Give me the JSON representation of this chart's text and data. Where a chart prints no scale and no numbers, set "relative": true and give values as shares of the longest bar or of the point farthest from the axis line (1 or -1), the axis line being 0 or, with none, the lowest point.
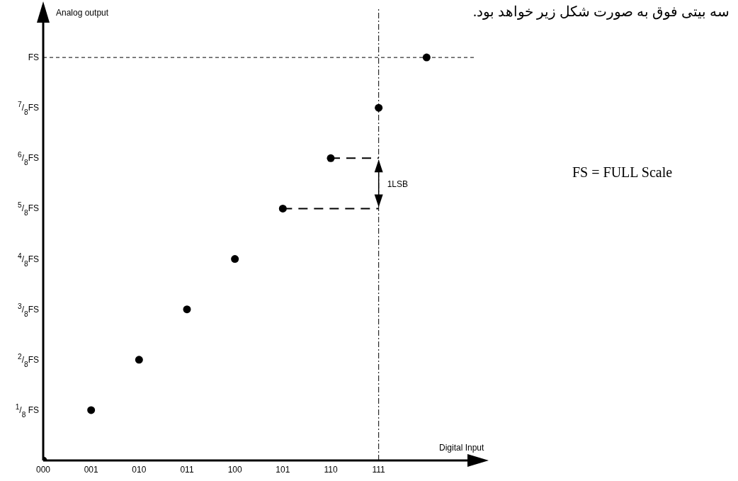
{
  "chart_data": {
    "type": "scatter",
    "title": "سه بیتی فوق به صورت شکل زیر خواهد بود.",
    "xlabel": "Digital Input",
    "ylabel": "Analog output",
    "relative": true,
    "categories": [
      "000",
      "001",
      "010",
      "011",
      "100",
      "101",
      "110",
      "111",
      null
    ],
    "series": [
      {
        "color": "#000000",
        "values": [
          0,
          0.125,
          0.25,
          0.375,
          0.5,
          0.625,
          0.75,
          0.875,
          1
        ]
      },
      {
        "type": "line",
        "x": [
          "101",
          "111"
        ],
        "values": [
          0.625,
          0.625
        ],
        "color": "#000000",
        "line_style": "dashed",
        "marker": "none"
      },
      {
        "type": "line",
        "x": [
          "110",
          "111"
        ],
        "values": [
          0.75,
          0.75
        ],
        "color": "#000000",
        "line_style": "dashed",
        "marker": "none"
      }
    ],
    "ref_lines": [
      {
        "axis": "y",
        "value": 1,
        "line_style": "dashed",
        "color": "#000000"
      },
      {
        "axis": "x",
        "value": "111",
        "line_style": "dashed",
        "color": "#000000"
      },
      {
        "axis": "x",
        "value": "000",
        "line_style": "solid",
        "color": "#000000"
      }
    ],
    "annotations": [
      "FS = FULL Scale",
      {
        "text": "1LSB",
        "x": "111",
        "y": 0.6875
      },
      "$^{1}$/$_{8}$ FS",
      "$^{2}$/$_{8}$FS",
      "$^{3}$/$_{8}$FS",
      "$^{4}$/$_{8}$FS",
      "$^{5}$/$_{8}$FS",
      "$^{6}$/$_{8}$FS",
      "$^{7}$/$_{8}$FS",
      "FS"
    ],
    "marker": "circle"
  }
}
